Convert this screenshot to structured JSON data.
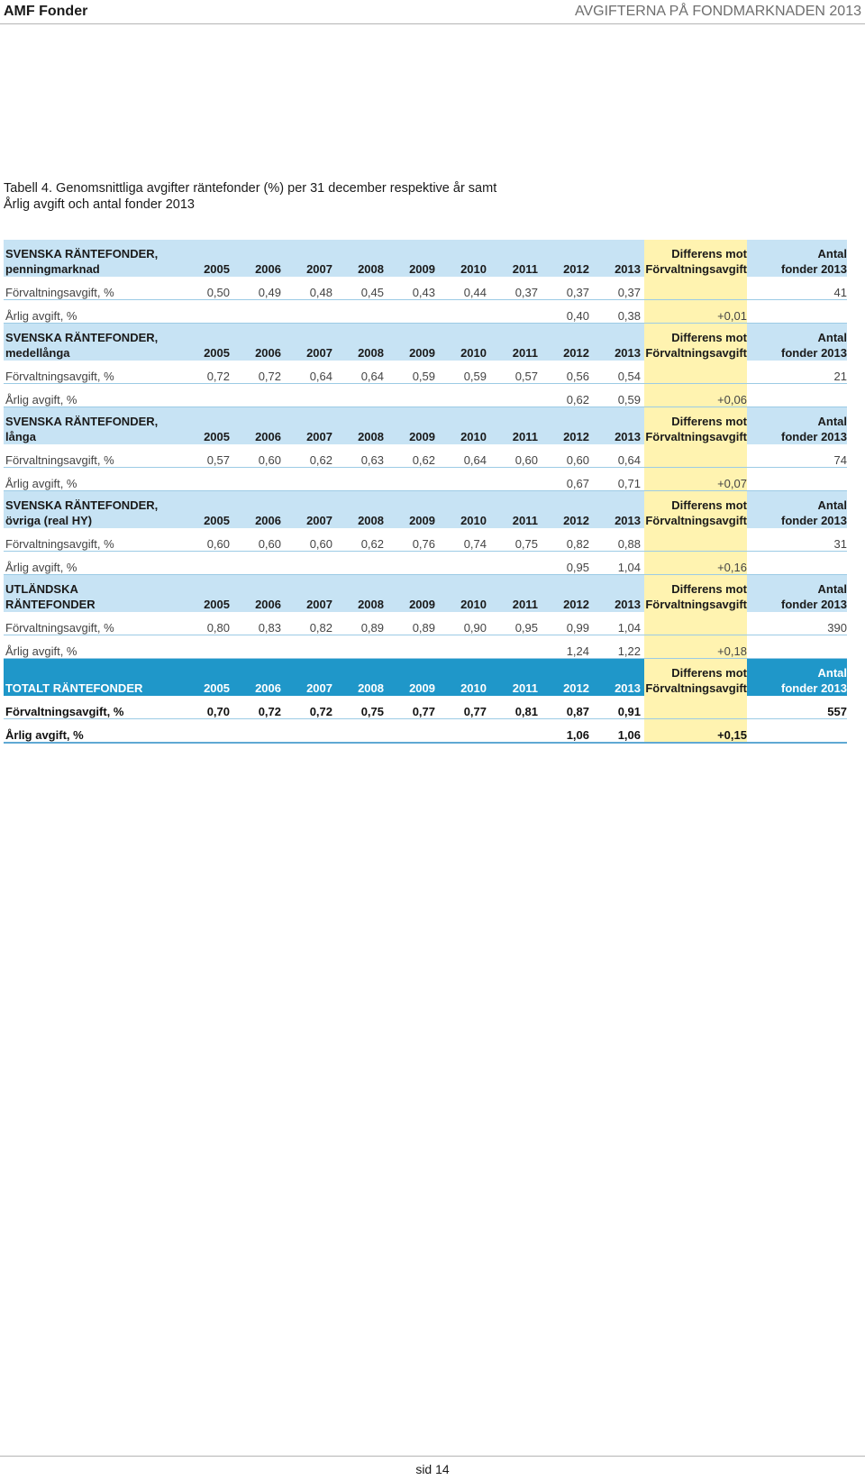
{
  "header": {
    "brand": "AMF Fonder",
    "title": "AVGIFTERNA PÅ FONDMARKNADEN 2013"
  },
  "caption": {
    "line1": "Tabell 4. Genomsnittliga avgifter räntefonder (%) per 31 december respektive år samt",
    "line2": "Årlig avgift och antal fonder 2013"
  },
  "columns": {
    "years": [
      "2005",
      "2006",
      "2007",
      "2008",
      "2009",
      "2010",
      "2011",
      "2012",
      "2013"
    ],
    "diff_line1": "Differens mot",
    "diff_line2": "Förvaltningsavgift",
    "antal_line1": "Antal",
    "antal_line2": "fonder 2013"
  },
  "sections": [
    {
      "title1": "SVENSKA RÄNTEFONDER,",
      "title2": "penningmarknad",
      "fee_label": "Förvaltningsavgift, %",
      "fee": [
        "0,50",
        "0,49",
        "0,48",
        "0,45",
        "0,43",
        "0,44",
        "0,37",
        "0,37",
        "0,37"
      ],
      "antal": "41",
      "annual_label": "Årlig avgift, %",
      "annual_2012": "0,40",
      "annual_2013": "0,38",
      "diff": "+0,01"
    },
    {
      "title1": "SVENSKA RÄNTEFONDER,",
      "title2": "medellånga",
      "fee_label": "Förvaltningsavgift, %",
      "fee": [
        "0,72",
        "0,72",
        "0,64",
        "0,64",
        "0,59",
        "0,59",
        "0,57",
        "0,56",
        "0,54"
      ],
      "antal": "21",
      "annual_label": "Årlig avgift, %",
      "annual_2012": "0,62",
      "annual_2013": "0,59",
      "diff": "+0,06"
    },
    {
      "title1": "SVENSKA RÄNTEFONDER,",
      "title2": "långa",
      "fee_label": "Förvaltningsavgift, %",
      "fee": [
        "0,57",
        "0,60",
        "0,62",
        "0,63",
        "0,62",
        "0,64",
        "0,60",
        "0,60",
        "0,64"
      ],
      "antal": "74",
      "annual_label": "Årlig avgift, %",
      "annual_2012": "0,67",
      "annual_2013": "0,71",
      "diff": "+0,07"
    },
    {
      "title1": "SVENSKA RÄNTEFONDER,",
      "title2": "övriga (real HY)",
      "fee_label": "Förvaltningsavgift, %",
      "fee": [
        "0,60",
        "0,60",
        "0,60",
        "0,62",
        "0,76",
        "0,74",
        "0,75",
        "0,82",
        "0,88"
      ],
      "antal": "31",
      "annual_label": "Årlig avgift, %",
      "annual_2012": "0,95",
      "annual_2013": "1,04",
      "diff": "+0,16"
    },
    {
      "title1": "UTLÄNDSKA",
      "title2": "RÄNTEFONDER",
      "fee_label": "Förvaltningsavgift, %",
      "fee": [
        "0,80",
        "0,83",
        "0,82",
        "0,89",
        "0,89",
        "0,90",
        "0,95",
        "0,99",
        "1,04"
      ],
      "antal": "390",
      "annual_label": "Årlig avgift, %",
      "annual_2012": "1,24",
      "annual_2013": "1,22",
      "diff": "+0,18"
    },
    {
      "title1": "",
      "title2": "TOTALT RÄNTEFONDER",
      "fee_label": "Förvaltningsavgift, %",
      "fee": [
        "0,70",
        "0,72",
        "0,72",
        "0,75",
        "0,77",
        "0,77",
        "0,81",
        "0,87",
        "0,91"
      ],
      "antal": "557",
      "annual_label": "Årlig avgift, %",
      "annual_2012": "1,06",
      "annual_2013": "1,06",
      "diff": "+0,15"
    }
  ],
  "footer": {
    "page": "sid 14"
  }
}
